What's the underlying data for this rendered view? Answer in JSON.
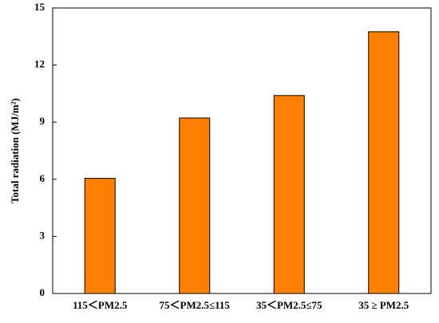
{
  "chart_data": {
    "type": "bar",
    "y_label": "Total radiation (MJ/m²)",
    "categories": [
      "115＜PM2.5",
      "75＜PM2.5≤115",
      "35＜PM2.5≤75",
      "35 ≥ PM2.5"
    ],
    "values": [
      6.05,
      9.22,
      10.4,
      13.75
    ],
    "color": "#ff8000",
    "ylim": [
      0,
      15
    ],
    "yticks": [
      0,
      3,
      6,
      9,
      12,
      15
    ],
    "grid": false
  }
}
